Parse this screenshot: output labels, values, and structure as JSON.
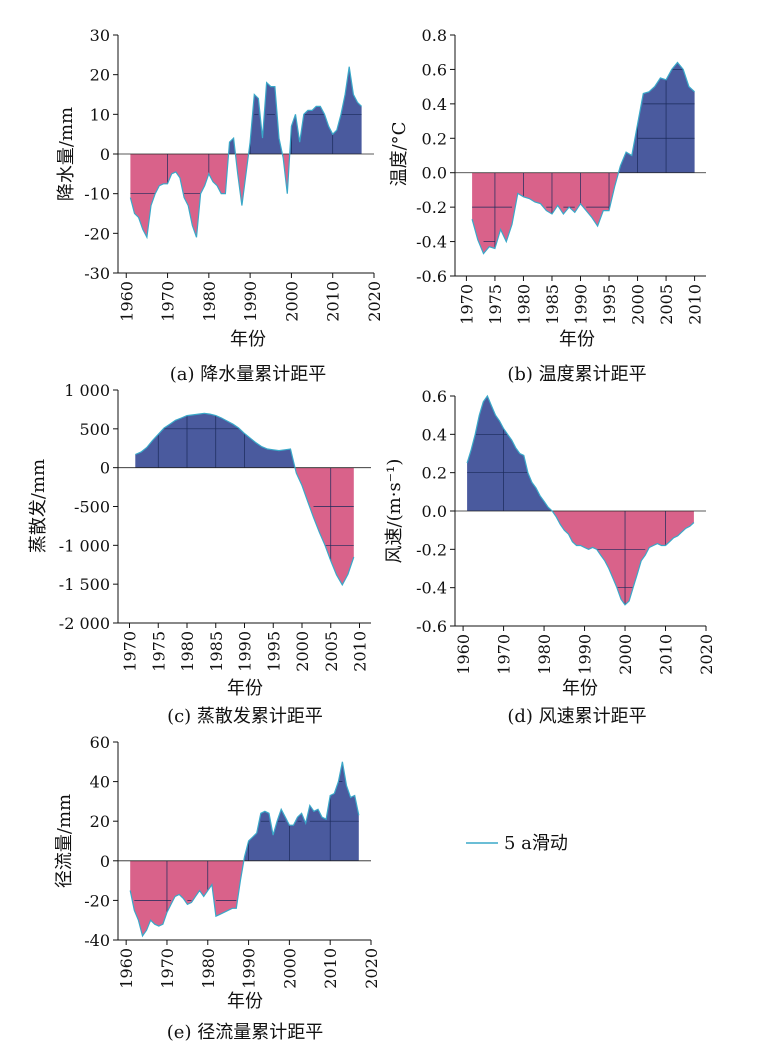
{
  "colors": {
    "positive": "#4a5a9e",
    "negative": "#d9628a",
    "line": "#3aa8c8",
    "grid": "#1a2a5a"
  },
  "legend": {
    "label": "5 a滑动"
  },
  "chart_data": [
    {
      "id": "a",
      "type": "area",
      "caption": "(a) 降水量累计距平",
      "xlabel": "年份",
      "ylabel": "降水量/mm",
      "xlim": [
        1958,
        2020
      ],
      "ylim": [
        -30,
        30
      ],
      "xticks": [
        1960,
        1970,
        1980,
        1990,
        2000,
        2010,
        2020
      ],
      "yticks": [
        -30,
        -20,
        -10,
        0,
        10,
        20,
        30
      ],
      "yticklabels": [
        "-30",
        "-20",
        "-10",
        "0",
        "10",
        "20",
        "30"
      ],
      "x": [
        1961,
        1962,
        1963,
        1964,
        1965,
        1966,
        1967,
        1968,
        1969,
        1970,
        1971,
        1972,
        1973,
        1974,
        1975,
        1976,
        1977,
        1978,
        1979,
        1980,
        1981,
        1982,
        1983,
        1984,
        1985,
        1986,
        1987,
        1988,
        1989,
        1990,
        1991,
        1992,
        1993,
        1994,
        1995,
        1996,
        1997,
        1998,
        1999,
        2000,
        2001,
        2002,
        2003,
        2004,
        2005,
        2006,
        2007,
        2008,
        2009,
        2010,
        2011,
        2012,
        2013,
        2014,
        2015,
        2016,
        2017
      ],
      "y": [
        -11,
        -15,
        -16,
        -19,
        -21,
        -13,
        -10,
        -8,
        -7.5,
        -7.5,
        -5,
        -4.5,
        -6,
        -11,
        -13,
        -18,
        -21,
        -10,
        -8,
        -5,
        -7,
        -8,
        -10,
        -10,
        3,
        4,
        -5,
        -13,
        -5,
        3,
        15,
        14,
        4,
        18,
        17,
        17,
        4,
        -1,
        -10,
        7,
        10,
        3,
        10,
        11,
        11,
        12,
        12,
        10,
        7,
        5,
        6,
        10,
        15,
        22,
        15,
        13,
        12
      ],
      "gridlines": [
        1970,
        1980,
        1990,
        2000,
        2010
      ]
    },
    {
      "id": "b",
      "type": "area",
      "caption": "(b) 温度累计距平",
      "xlabel": "年份",
      "ylabel": "温度/°C",
      "xlim": [
        1968,
        2012
      ],
      "ylim": [
        -0.6,
        0.8
      ],
      "xticks": [
        1970,
        1975,
        1980,
        1985,
        1990,
        1995,
        2000,
        2005,
        2010
      ],
      "yticks": [
        -0.6,
        -0.4,
        -0.2,
        0.0,
        0.2,
        0.4,
        0.6,
        0.8
      ],
      "yticklabels": [
        "-0.6",
        "-0.4",
        "-0.2",
        "0.0",
        "0.2",
        "0.4",
        "0.6",
        "0.8"
      ],
      "x": [
        1971,
        1972,
        1973,
        1974,
        1975,
        1976,
        1977,
        1978,
        1979,
        1980,
        1981,
        1982,
        1983,
        1984,
        1985,
        1986,
        1987,
        1988,
        1989,
        1990,
        1991,
        1992,
        1993,
        1994,
        1995,
        1996,
        1997,
        1998,
        1999,
        2000,
        2001,
        2002,
        2003,
        2004,
        2005,
        2006,
        2007,
        2008,
        2009,
        2010
      ],
      "y": [
        -0.27,
        -0.39,
        -0.47,
        -0.43,
        -0.44,
        -0.33,
        -0.4,
        -0.3,
        -0.12,
        -0.14,
        -0.15,
        -0.17,
        -0.18,
        -0.22,
        -0.24,
        -0.19,
        -0.24,
        -0.2,
        -0.23,
        -0.18,
        -0.22,
        -0.26,
        -0.31,
        -0.22,
        -0.22,
        -0.08,
        0.04,
        0.12,
        0.1,
        0.28,
        0.46,
        0.47,
        0.5,
        0.55,
        0.54,
        0.6,
        0.64,
        0.6,
        0.5,
        0.47
      ],
      "gridlines": [
        1975,
        1980,
        1985,
        1990,
        1995,
        2000,
        2005
      ]
    },
    {
      "id": "c",
      "type": "area",
      "caption": "(c) 蒸散发累计距平",
      "xlabel": "年份",
      "ylabel": "蒸散发/mm",
      "xlim": [
        1968,
        2012
      ],
      "ylim": [
        -2000,
        1000
      ],
      "xticks": [
        1970,
        1975,
        1980,
        1985,
        1990,
        1995,
        2000,
        2005,
        2010
      ],
      "yticks": [
        -2000,
        -1500,
        -1000,
        -500,
        0,
        500,
        1000
      ],
      "yticklabels": [
        "-2 000",
        "-1 500",
        "-1 000",
        "-500",
        "0",
        "500",
        "1 000"
      ],
      "x": [
        1971,
        1972,
        1973,
        1974,
        1975,
        1976,
        1977,
        1978,
        1979,
        1980,
        1981,
        1982,
        1983,
        1984,
        1985,
        1986,
        1987,
        1988,
        1989,
        1990,
        1991,
        1992,
        1993,
        1994,
        1995,
        1996,
        1997,
        1998,
        1999,
        2000,
        2001,
        2002,
        2003,
        2004,
        2005,
        2006,
        2007,
        2008,
        2009
      ],
      "y": [
        170,
        200,
        260,
        350,
        430,
        510,
        560,
        610,
        640,
        670,
        680,
        690,
        700,
        690,
        670,
        640,
        600,
        560,
        510,
        440,
        380,
        320,
        270,
        240,
        230,
        220,
        230,
        240,
        -70,
        -230,
        -440,
        -640,
        -830,
        -1000,
        -1200,
        -1380,
        -1510,
        -1370,
        -1150
      ],
      "gridlines": [
        1975,
        1980,
        1985,
        1990,
        2005
      ]
    },
    {
      "id": "d",
      "type": "area",
      "caption": "(d) 风速累计距平",
      "xlabel": "年份",
      "ylabel": "风速/(m·s⁻¹)",
      "xlim": [
        1958,
        2020
      ],
      "ylim": [
        -0.6,
        0.6
      ],
      "xticks": [
        1960,
        1970,
        1980,
        1990,
        2000,
        2010,
        2020
      ],
      "yticks": [
        -0.6,
        -0.4,
        -0.2,
        0.0,
        0.2,
        0.4,
        0.6
      ],
      "yticklabels": [
        "-0.6",
        "-0.4",
        "-0.2",
        "0.0",
        "0.2",
        "0.4",
        "0.6"
      ],
      "x": [
        1961,
        1962,
        1963,
        1964,
        1965,
        1966,
        1967,
        1968,
        1969,
        1970,
        1971,
        1972,
        1973,
        1974,
        1975,
        1976,
        1977,
        1978,
        1979,
        1980,
        1981,
        1982,
        1983,
        1984,
        1985,
        1986,
        1987,
        1988,
        1989,
        1990,
        1991,
        1992,
        1993,
        1994,
        1995,
        1996,
        1997,
        1998,
        1999,
        2000,
        2001,
        2002,
        2003,
        2004,
        2005,
        2006,
        2007,
        2008,
        2009,
        2010,
        2011,
        2012,
        2013,
        2014,
        2015,
        2016,
        2017
      ],
      "y": [
        0.25,
        0.32,
        0.4,
        0.5,
        0.57,
        0.6,
        0.55,
        0.5,
        0.47,
        0.43,
        0.4,
        0.37,
        0.33,
        0.3,
        0.29,
        0.2,
        0.15,
        0.12,
        0.08,
        0.05,
        0.02,
        0.0,
        -0.03,
        -0.07,
        -0.1,
        -0.12,
        -0.16,
        -0.18,
        -0.18,
        -0.19,
        -0.2,
        -0.19,
        -0.2,
        -0.23,
        -0.26,
        -0.3,
        -0.35,
        -0.4,
        -0.46,
        -0.49,
        -0.47,
        -0.4,
        -0.33,
        -0.26,
        -0.23,
        -0.19,
        -0.18,
        -0.17,
        -0.18,
        -0.18,
        -0.16,
        -0.14,
        -0.13,
        -0.11,
        -0.09,
        -0.08,
        -0.06
      ],
      "gridlines": [
        1970,
        2000,
        2010
      ]
    },
    {
      "id": "e",
      "type": "area",
      "caption": "(e) 径流量累计距平",
      "xlabel": "年份",
      "ylabel": "径流量/mm",
      "xlim": [
        1958,
        2020
      ],
      "ylim": [
        -40,
        60
      ],
      "xticks": [
        1960,
        1970,
        1980,
        1990,
        2000,
        2010,
        2020
      ],
      "yticks": [
        -40,
        -20,
        0,
        20,
        40,
        60
      ],
      "yticklabels": [
        "-40",
        "-20",
        "0",
        "20",
        "40",
        "60"
      ],
      "x": [
        1961,
        1962,
        1963,
        1964,
        1965,
        1966,
        1967,
        1968,
        1969,
        1970,
        1971,
        1972,
        1973,
        1974,
        1975,
        1976,
        1977,
        1978,
        1979,
        1980,
        1981,
        1982,
        1983,
        1984,
        1985,
        1986,
        1987,
        1988,
        1989,
        1990,
        1991,
        1992,
        1993,
        1994,
        1995,
        1996,
        1997,
        1998,
        1999,
        2000,
        2001,
        2002,
        2003,
        2004,
        2005,
        2006,
        2007,
        2008,
        2009,
        2010,
        2011,
        2012,
        2013,
        2014,
        2015,
        2016,
        2017
      ],
      "y": [
        -15,
        -25,
        -30,
        -38,
        -35,
        -30,
        -32,
        -33,
        -32,
        -26,
        -22,
        -18,
        -17,
        -19,
        -22,
        -21,
        -18,
        -15,
        -18,
        -15,
        -12,
        -28,
        -27,
        -26,
        -25,
        -24,
        -24,
        -10,
        2,
        10,
        12,
        14,
        24,
        25,
        24,
        13,
        20,
        26,
        22,
        18,
        18,
        22,
        24,
        19,
        28,
        25,
        26,
        22,
        21,
        33,
        34,
        40,
        50,
        38,
        32,
        33,
        23
      ],
      "gridlines": [
        1970,
        1980,
        1990,
        2000,
        2010
      ]
    }
  ]
}
